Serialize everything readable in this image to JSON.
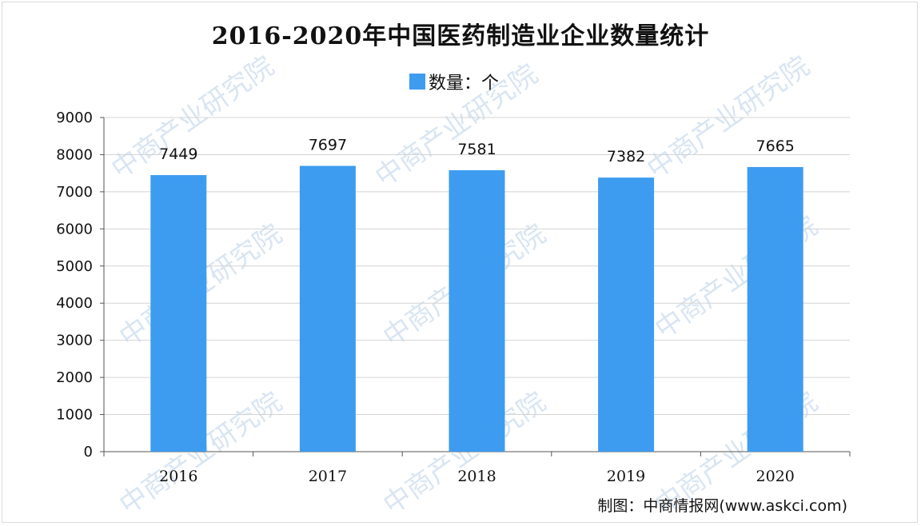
{
  "title": "2016-2020年中国医药制造业企业数量统计",
  "legend_label": "数量：个",
  "source": "制图：中商情报网(www.askci.com)",
  "watermark_text": "中商产业研究院",
  "colors": {
    "bar": "#3d9cf0",
    "axis": "#555555",
    "grid": "#d4d4d4"
  },
  "chart_data": {
    "type": "bar",
    "title": "2016-2020年中国医药制造业企业数量统计",
    "categories": [
      "2016",
      "2017",
      "2018",
      "2019",
      "2020"
    ],
    "series": [
      {
        "name": "数量：个",
        "values": [
          7449,
          7697,
          7581,
          7382,
          7665
        ]
      }
    ],
    "xlabel": "",
    "ylabel": "",
    "ylim": [
      0,
      9000
    ],
    "yticks": [
      0,
      1000,
      2000,
      3000,
      4000,
      5000,
      6000,
      7000,
      8000,
      9000
    ],
    "grid": true,
    "legend_position": "top-center",
    "data_labels": true
  }
}
